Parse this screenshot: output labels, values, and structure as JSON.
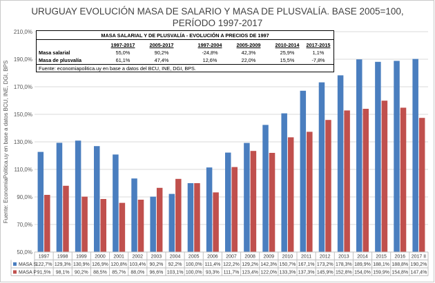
{
  "title_line1": "URUGUAY EVOLUCIÓN MASA DE SALARIO Y MASA DE PLUSVALÍA. BASE 2005=100,",
  "title_line2": "PERÍODO 1997-2017",
  "info_table": {
    "title": "MASA SALARIAL Y DE PLUSVALÍA - EVOLUCIÓN A PRECIOS DE 1997",
    "headers": [
      "1997-2017",
      "2005-2017",
      "1997-2004",
      "2005-2009",
      "2010-2014",
      "2017-2015"
    ],
    "rows": [
      {
        "label": "Masa salarial",
        "values": [
          "55,0%",
          "90,2%",
          "-24,8%",
          "42,3%",
          "25,9%",
          "1,1%"
        ]
      },
      {
        "label": "Masa de plusvalía",
        "values": [
          "61,1%",
          "47,4%",
          "12,6%",
          "22,0%",
          "15,5%",
          "-7,8%"
        ]
      }
    ],
    "source": "Fuente: economiapolitica.uy en base a datos del BCU, INE, DGI, BPS."
  },
  "chart_data": {
    "type": "bar",
    "ylabel": "Fuente: EconomiaPolitica.uy en base a datos BCU, INE, DGI, BPS",
    "ylim": [
      50,
      210
    ],
    "yticks": [
      "50,0%",
      "70,0%",
      "90,0%",
      "110,0%",
      "130,0%",
      "150,0%",
      "170,0%",
      "190,0%",
      "210,0%"
    ],
    "ytick_values": [
      50,
      70,
      90,
      110,
      130,
      150,
      170,
      190,
      210
    ],
    "grid": true,
    "categories": [
      "1997",
      "1998",
      "1999",
      "2000",
      "2001",
      "2002",
      "2003",
      "2004",
      "2005",
      "2006",
      "2007",
      "2008",
      "2009",
      "2010",
      "2011",
      "2012",
      "2013",
      "2014",
      "2015",
      "2016",
      "2017 II"
    ],
    "series": [
      {
        "name": "MASA S",
        "color": "#4a7ebf",
        "values": [
          122.7,
          129.3,
          130.9,
          126.9,
          120.8,
          103.4,
          90.2,
          92.2,
          100.0,
          111.4,
          122.2,
          129.2,
          142.3,
          150.7,
          167.1,
          173.2,
          178.3,
          189.9,
          188.1,
          188.8,
          190.2
        ],
        "labels": [
          "122,7%",
          "129,3%",
          "130,9%",
          "126,9%",
          "120,8%",
          "103,4%",
          "90,2%",
          "92,2%",
          "100,0%",
          "111,4%",
          "122,2%",
          "129,2%",
          "142,3%",
          "150,7%",
          "167,1%",
          "173,2%",
          "178,3%",
          "189,9%",
          "188,1%",
          "188,8%",
          "190,2%"
        ]
      },
      {
        "name": "MASA P",
        "color": "#c0504d",
        "values": [
          91.5,
          98.1,
          90.2,
          88.5,
          85.7,
          88.0,
          96.6,
          103.1,
          100.0,
          93.3,
          111.7,
          123.4,
          122.0,
          133.3,
          137.3,
          145.9,
          152.8,
          154.0,
          159.9,
          154.8,
          147.4
        ],
        "labels": [
          "91,5%",
          "98,1%",
          "90,2%",
          "88,5%",
          "85,7%",
          "88,0%",
          "96,6%",
          "103,1%",
          "100,0%",
          "93,3%",
          "111,7%",
          "123,4%",
          "122,0%",
          "133,3%",
          "137,3%",
          "145,9%",
          "152,8%",
          "154,0%",
          "159,9%",
          "154,8%",
          "147,4%"
        ]
      }
    ]
  }
}
